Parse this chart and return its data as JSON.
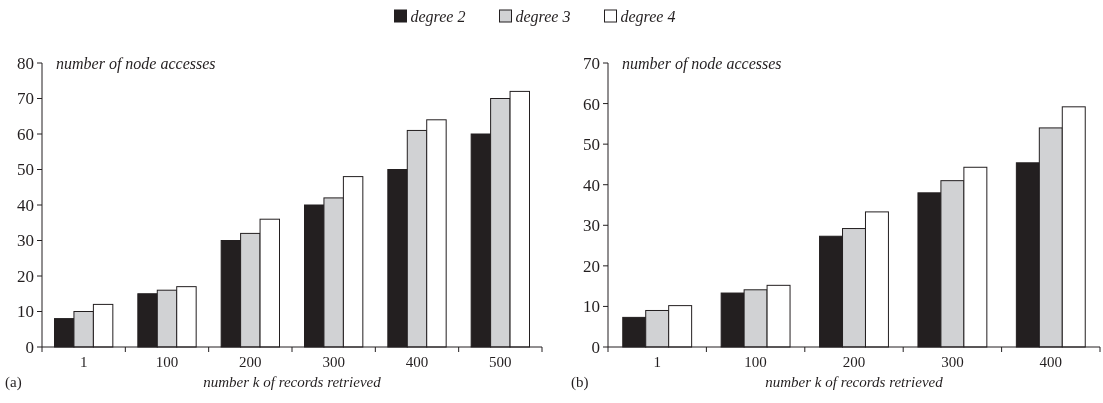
{
  "chart_data": [
    {
      "type": "bar",
      "categories": [
        "1",
        "100",
        "200",
        "300",
        "400",
        "500"
      ],
      "xlabel": "number k of records retrieved",
      "ylabel": "number of node accesses",
      "ylim": [
        0,
        80
      ],
      "yticks": [
        0,
        10,
        20,
        30,
        40,
        50,
        60,
        70,
        80
      ],
      "legend": "top",
      "annotations": [
        "(a)"
      ],
      "series": [
        {
          "name": "degree 2",
          "color": "#231f20",
          "values": [
            8,
            15,
            30,
            40,
            50,
            60
          ]
        },
        {
          "name": "degree 3",
          "color": "#d1d2d4",
          "values": [
            10,
            16,
            32,
            42,
            61,
            70
          ]
        },
        {
          "name": "degree 4",
          "color": "#ffffff",
          "values": [
            12,
            17,
            36,
            48,
            64,
            72
          ]
        }
      ]
    },
    {
      "type": "bar",
      "categories": [
        "1",
        "100",
        "200",
        "300",
        "400"
      ],
      "xlabel": "number k of records retrieved",
      "ylabel": "number of node accesses",
      "ylim": [
        0,
        70
      ],
      "yticks": [
        0,
        10,
        20,
        30,
        40,
        50,
        60,
        70
      ],
      "annotations": [
        "(b)"
      ],
      "series": [
        {
          "color": "#231f20",
          "values": [
            7.3,
            13.3,
            27.3,
            38,
            45.4
          ]
        },
        {
          "color": "#d1d2d4",
          "values": [
            9,
            14.1,
            29.2,
            41,
            54
          ]
        },
        {
          "color": "#ffffff",
          "values": [
            10.2,
            15.2,
            33.3,
            44.3,
            59.2
          ]
        }
      ]
    }
  ]
}
